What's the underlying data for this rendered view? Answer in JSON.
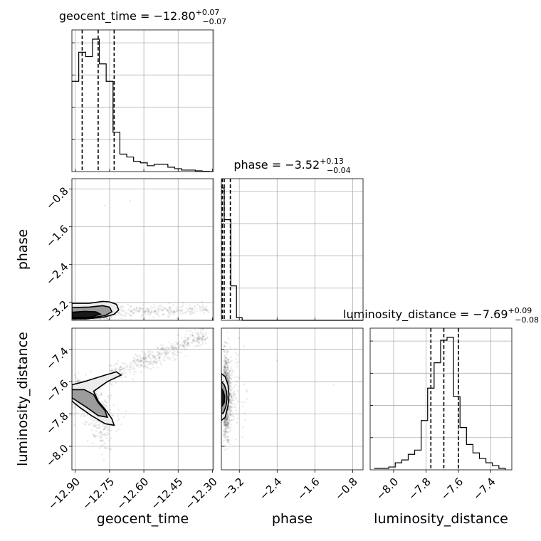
{
  "chart_data": {
    "type": "corner",
    "parameters": [
      "geocent_time",
      "phase",
      "luminosity_distance"
    ],
    "ranges": {
      "geocent_time": [
        -12.915,
        -12.295
      ],
      "phase": [
        -3.58,
        -0.58
      ],
      "luminosity_distance": [
        -8.145,
        -7.27
      ]
    },
    "titles": [
      {
        "param": "geocent_time",
        "label": "geocent_time",
        "median": "−12.80",
        "plus": "+0.07",
        "minus": "−0.07"
      },
      {
        "param": "phase",
        "label": "phase",
        "median": "−3.52",
        "plus": "+0.13",
        "minus": "−0.04"
      },
      {
        "param": "luminosity_distance",
        "label": "luminosity_distance",
        "median": "−7.69",
        "plus": "+0.09",
        "minus": "−0.08"
      }
    ],
    "ticks": {
      "geocent_time": [
        {
          "v": -12.9,
          "label": "−12.90"
        },
        {
          "v": -12.75,
          "label": "−12.75"
        },
        {
          "v": -12.6,
          "label": "−12.60"
        },
        {
          "v": -12.45,
          "label": "−12.45"
        },
        {
          "v": -12.3,
          "label": "−12.30"
        }
      ],
      "phase": [
        {
          "v": -3.2,
          "label": "−3.2"
        },
        {
          "v": -2.4,
          "label": "−2.4"
        },
        {
          "v": -1.6,
          "label": "−1.6"
        },
        {
          "v": -0.8,
          "label": "−0.8"
        }
      ],
      "luminosity_distance": [
        {
          "v": -8.0,
          "label": "−8.0"
        },
        {
          "v": -7.8,
          "label": "−7.8"
        },
        {
          "v": -7.6,
          "label": "−7.6"
        },
        {
          "v": -7.4,
          "label": "−7.4"
        }
      ]
    },
    "histograms": {
      "geocent_time": {
        "x": [
          -12.915,
          -12.9,
          -12.885,
          -12.87,
          -12.855,
          -12.84,
          -12.825,
          -12.81,
          -12.795,
          -12.78,
          -12.765,
          -12.75,
          -12.735,
          -12.72,
          -12.705,
          -12.69,
          -12.675,
          -12.66,
          -12.645,
          -12.63,
          -12.615,
          -12.6,
          -12.585,
          -12.57,
          -12.555,
          -12.54,
          -12.525,
          -12.51,
          -12.495,
          -12.48,
          -12.465,
          -12.45,
          -12.435,
          -12.42,
          -12.405,
          -12.39,
          -12.375,
          -12.36,
          -12.345,
          -12.33,
          -12.315,
          -12.3
        ],
        "counts": [
          0.62,
          0.62,
          0.82,
          0.82,
          0.79,
          0.79,
          0.91,
          0.91,
          0.74,
          0.74,
          0.62,
          0.62,
          0.27,
          0.27,
          0.12,
          0.12,
          0.1,
          0.1,
          0.07,
          0.07,
          0.06,
          0.06,
          0.04,
          0.04,
          0.05,
          0.05,
          0.05,
          0.05,
          0.03,
          0.03,
          0.02,
          0.02,
          0.01,
          0.01,
          0.01,
          0.01,
          0.005,
          0.005,
          0.002,
          0.002,
          0,
          0
        ],
        "quantiles": [
          -12.87,
          -12.8,
          -12.73
        ]
      },
      "phase": {
        "x": [
          -3.58,
          -3.52,
          -3.52,
          -3.38,
          -3.38,
          -3.26,
          -3.26,
          -3.14,
          -3.14,
          -0.58
        ],
        "counts": [
          1.0,
          1.0,
          0.76,
          0.76,
          0.26,
          0.26,
          0.02,
          0.02,
          0,
          0
        ],
        "quantiles": [
          -3.56,
          -3.52,
          -3.39
        ]
      },
      "luminosity_distance": {
        "x": [
          -8.12,
          -8.06,
          -8.03,
          -7.99,
          -7.95,
          -7.91,
          -7.87,
          -7.83,
          -7.79,
          -7.75,
          -7.71,
          -7.67,
          -7.63,
          -7.59,
          -7.55,
          -7.51,
          -7.47,
          -7.43,
          -7.39,
          -7.35,
          -7.31
        ],
        "counts": [
          0.01,
          0.01,
          0.02,
          0.05,
          0.07,
          0.11,
          0.14,
          0.35,
          0.58,
          0.76,
          0.92,
          0.94,
          0.52,
          0.3,
          0.18,
          0.12,
          0.08,
          0.05,
          0.03,
          0.01,
          0
        ],
        "quantiles": [
          -7.77,
          -7.69,
          -7.6
        ]
      }
    },
    "contours_2d": {
      "geocent_time__phase": {
        "levels": [
          [
            [
              -12.915,
              -3.22
            ],
            [
              -12.84,
              -3.22
            ],
            [
              -12.78,
              -3.18
            ],
            [
              -12.75,
              -3.19
            ],
            [
              -12.72,
              -3.24
            ],
            [
              -12.71,
              -3.36
            ],
            [
              -12.73,
              -3.45
            ],
            [
              -12.78,
              -3.52
            ],
            [
              -12.86,
              -3.55
            ],
            [
              -12.915,
              -3.55
            ]
          ],
          [
            [
              -12.915,
              -3.31
            ],
            [
              -12.84,
              -3.3
            ],
            [
              -12.78,
              -3.27
            ],
            [
              -12.75,
              -3.3
            ],
            [
              -12.74,
              -3.4
            ],
            [
              -12.77,
              -3.48
            ],
            [
              -12.84,
              -3.53
            ],
            [
              -12.915,
              -3.53
            ]
          ],
          [
            [
              -12.915,
              -3.41
            ],
            [
              -12.86,
              -3.39
            ],
            [
              -12.81,
              -3.4
            ],
            [
              -12.79,
              -3.45
            ],
            [
              -12.83,
              -3.51
            ],
            [
              -12.915,
              -3.52
            ]
          ]
        ]
      },
      "geocent_time__luminosity_distance": {
        "levels": [
          [
            [
              -12.915,
              -7.62
            ],
            [
              -12.86,
              -7.6
            ],
            [
              -12.77,
              -7.56
            ],
            [
              -12.72,
              -7.54
            ],
            [
              -12.7,
              -7.56
            ],
            [
              -12.76,
              -7.6
            ],
            [
              -12.82,
              -7.66
            ],
            [
              -12.8,
              -7.72
            ],
            [
              -12.77,
              -7.77
            ],
            [
              -12.74,
              -7.83
            ],
            [
              -12.73,
              -7.87
            ],
            [
              -12.77,
              -7.86
            ],
            [
              -12.83,
              -7.81
            ],
            [
              -12.88,
              -7.76
            ],
            [
              -12.915,
              -7.72
            ]
          ],
          [
            [
              -12.915,
              -7.65
            ],
            [
              -12.86,
              -7.65
            ],
            [
              -12.82,
              -7.68
            ],
            [
              -12.8,
              -7.73
            ],
            [
              -12.77,
              -7.78
            ],
            [
              -12.76,
              -7.82
            ],
            [
              -12.8,
              -7.81
            ],
            [
              -12.85,
              -7.76
            ],
            [
              -12.915,
              -7.7
            ]
          ]
        ]
      },
      "phase__luminosity_distance": {
        "levels": [
          [
            [
              -3.58,
              -7.55
            ],
            [
              -3.5,
              -7.57
            ],
            [
              -3.44,
              -7.62
            ],
            [
              -3.42,
              -7.68
            ],
            [
              -3.44,
              -7.75
            ],
            [
              -3.5,
              -7.82
            ],
            [
              -3.58,
              -7.84
            ]
          ],
          [
            [
              -3.58,
              -7.6
            ],
            [
              -3.52,
              -7.62
            ],
            [
              -3.47,
              -7.66
            ],
            [
              -3.46,
              -7.7
            ],
            [
              -3.48,
              -7.75
            ],
            [
              -3.53,
              -7.79
            ],
            [
              -3.58,
              -7.8
            ]
          ],
          [
            [
              -3.58,
              -7.64
            ],
            [
              -3.54,
              -7.66
            ],
            [
              -3.51,
              -7.69
            ],
            [
              -3.52,
              -7.73
            ],
            [
              -3.56,
              -7.75
            ],
            [
              -3.58,
              -7.75
            ]
          ]
        ]
      }
    },
    "grid": true,
    "line_color": "#000000",
    "grid_color": "#b0b0b0"
  }
}
